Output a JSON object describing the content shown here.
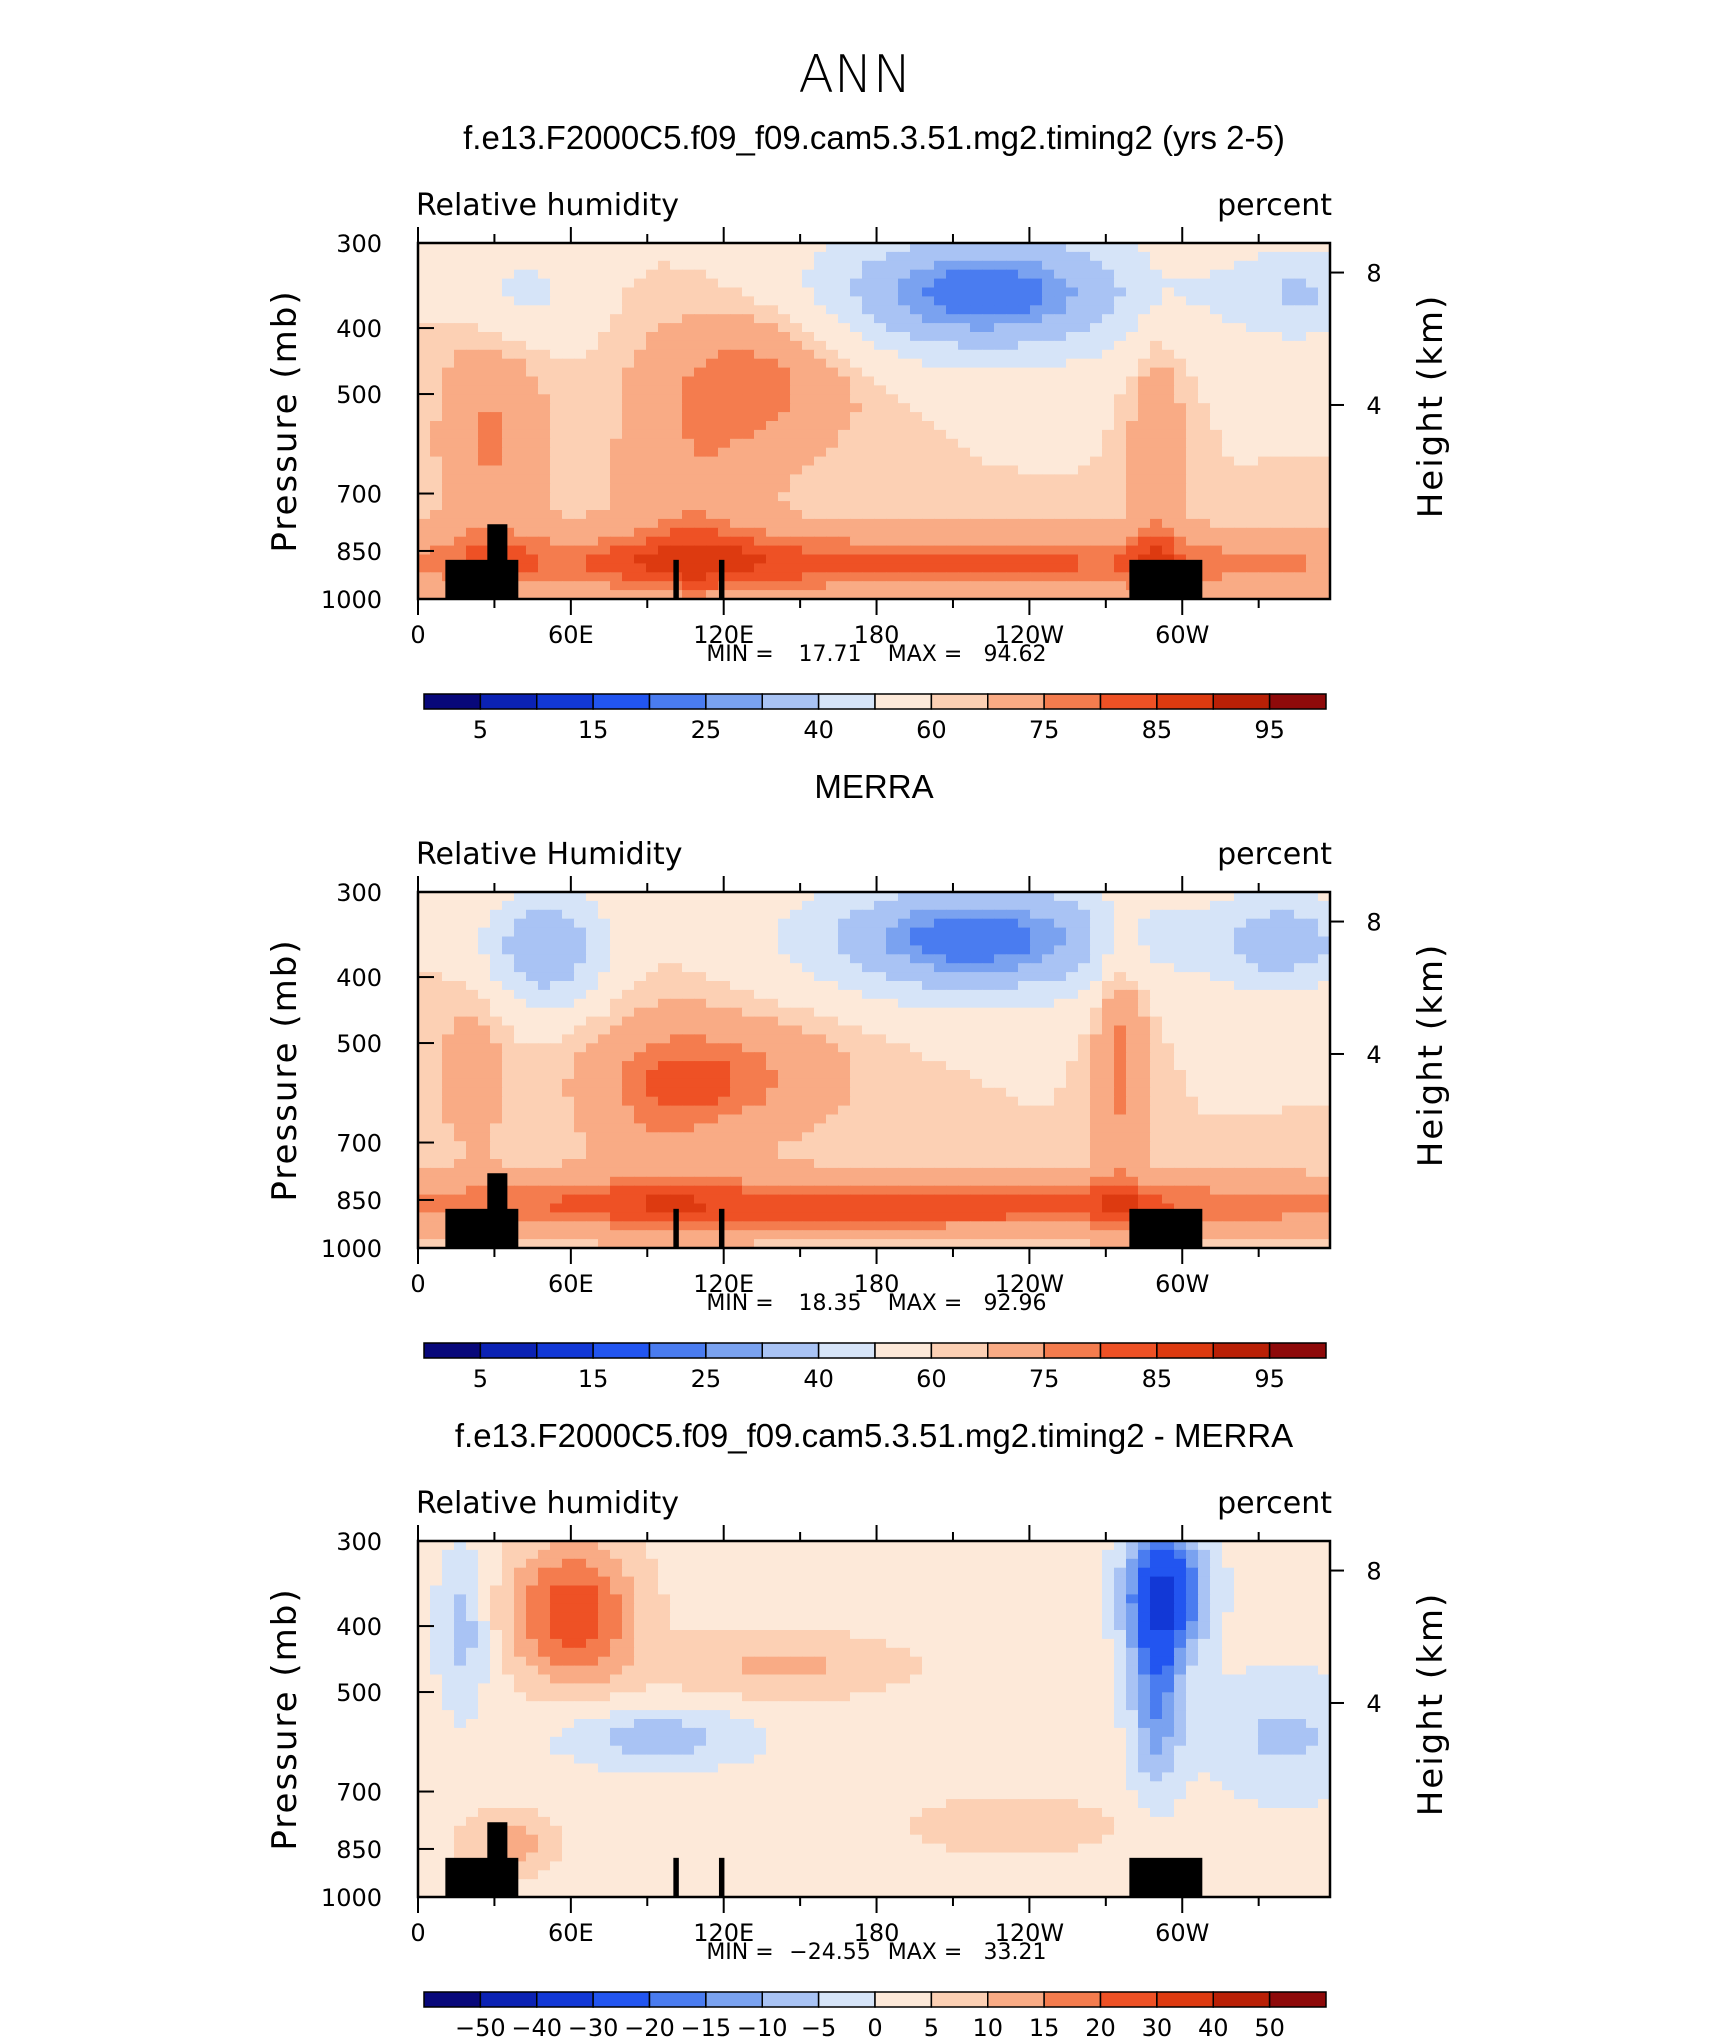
{
  "figure": {
    "title": "ANN"
  },
  "chart_data": [
    {
      "type": "heatmap",
      "title": "f.e13.F2000C5.f09_f09.cam5.3.51.mg2.timing2 (yrs 2-5)",
      "variable_label": "Relative humidity",
      "units_label": "percent",
      "ylabel": "Pressure (mb)",
      "y2label": "Height (km)",
      "x_ticks": [
        "0",
        "60E",
        "120E",
        "180",
        "120W",
        "60W"
      ],
      "y_ticks": [
        "300",
        "400",
        "500",
        "700",
        "850",
        "1000"
      ],
      "y2_ticks": [
        "8",
        "4"
      ],
      "stats": {
        "min_label": "MIN =",
        "min": "17.71",
        "max_label": "MAX =",
        "max": "94.62"
      },
      "colorbar": {
        "levels": [
          "5",
          "10",
          "15",
          "20",
          "25",
          "30",
          "40",
          "50",
          "60",
          "65",
          "75",
          "80",
          "85",
          "90",
          "95"
        ],
        "tick_labels": [
          "5",
          "15",
          "25",
          "40",
          "60",
          "75",
          "85",
          "95"
        ],
        "colors": [
          "#08087a",
          "#0b22b4",
          "#1238d6",
          "#2255f0",
          "#4a7cf0",
          "#7aa2f0",
          "#a9c3f4",
          "#d6e4f8",
          "#fde9d9",
          "#fcd0b4",
          "#f9ab85",
          "#f47c4e",
          "#ee5125",
          "#dd3a10",
          "#b92006",
          "#8e0a0a"
        ]
      }
    },
    {
      "type": "heatmap",
      "title": "MERRA",
      "variable_label": "Relative Humidity",
      "units_label": "percent",
      "ylabel": "Pressure (mb)",
      "y2label": "Height (km)",
      "x_ticks": [
        "0",
        "60E",
        "120E",
        "180",
        "120W",
        "60W"
      ],
      "y_ticks": [
        "300",
        "400",
        "500",
        "700",
        "850",
        "1000"
      ],
      "y2_ticks": [
        "8",
        "4"
      ],
      "stats": {
        "min_label": "MIN =",
        "min": "18.35",
        "max_label": "MAX =",
        "max": "92.96"
      },
      "colorbar": {
        "levels": [
          "5",
          "10",
          "15",
          "20",
          "25",
          "30",
          "40",
          "50",
          "60",
          "65",
          "75",
          "80",
          "85",
          "90",
          "95"
        ],
        "tick_labels": [
          "5",
          "15",
          "25",
          "40",
          "60",
          "75",
          "85",
          "95"
        ],
        "colors": [
          "#08087a",
          "#0b22b4",
          "#1238d6",
          "#2255f0",
          "#4a7cf0",
          "#7aa2f0",
          "#a9c3f4",
          "#d6e4f8",
          "#fde9d9",
          "#fcd0b4",
          "#f9ab85",
          "#f47c4e",
          "#ee5125",
          "#dd3a10",
          "#b92006",
          "#8e0a0a"
        ]
      }
    },
    {
      "type": "heatmap",
      "title": "f.e13.F2000C5.f09_f09.cam5.3.51.mg2.timing2 - MERRA",
      "variable_label": "Relative humidity",
      "units_label": "percent",
      "ylabel": "Pressure (mb)",
      "y2label": "Height (km)",
      "x_ticks": [
        "0",
        "60E",
        "120E",
        "180",
        "120W",
        "60W"
      ],
      "y_ticks": [
        "300",
        "400",
        "500",
        "700",
        "850",
        "1000"
      ],
      "y2_ticks": [
        "8",
        "4"
      ],
      "stats": {
        "min_label": "MIN =",
        "min": "−24.55",
        "max_label": "MAX =",
        "max": "33.21"
      },
      "colorbar": {
        "levels": [
          "-50",
          "-40",
          "-30",
          "-20",
          "-15",
          "-10",
          "-5",
          "0",
          "5",
          "10",
          "15",
          "20",
          "30",
          "40",
          "50"
        ],
        "tick_labels": [
          "−50",
          "−40",
          "−30",
          "−20",
          "−15",
          "−10",
          "−5",
          "0",
          "5",
          "10",
          "15",
          "20",
          "30",
          "40",
          "50"
        ],
        "colors": [
          "#08087a",
          "#0b22b4",
          "#1238d6",
          "#2255f0",
          "#4a7cf0",
          "#7aa2f0",
          "#a9c3f4",
          "#d6e4f8",
          "#fde9d9",
          "#fcd0b4",
          "#f9ab85",
          "#f47c4e",
          "#ee5125",
          "#dd3a10",
          "#b92006",
          "#8e0a0a"
        ]
      }
    }
  ]
}
